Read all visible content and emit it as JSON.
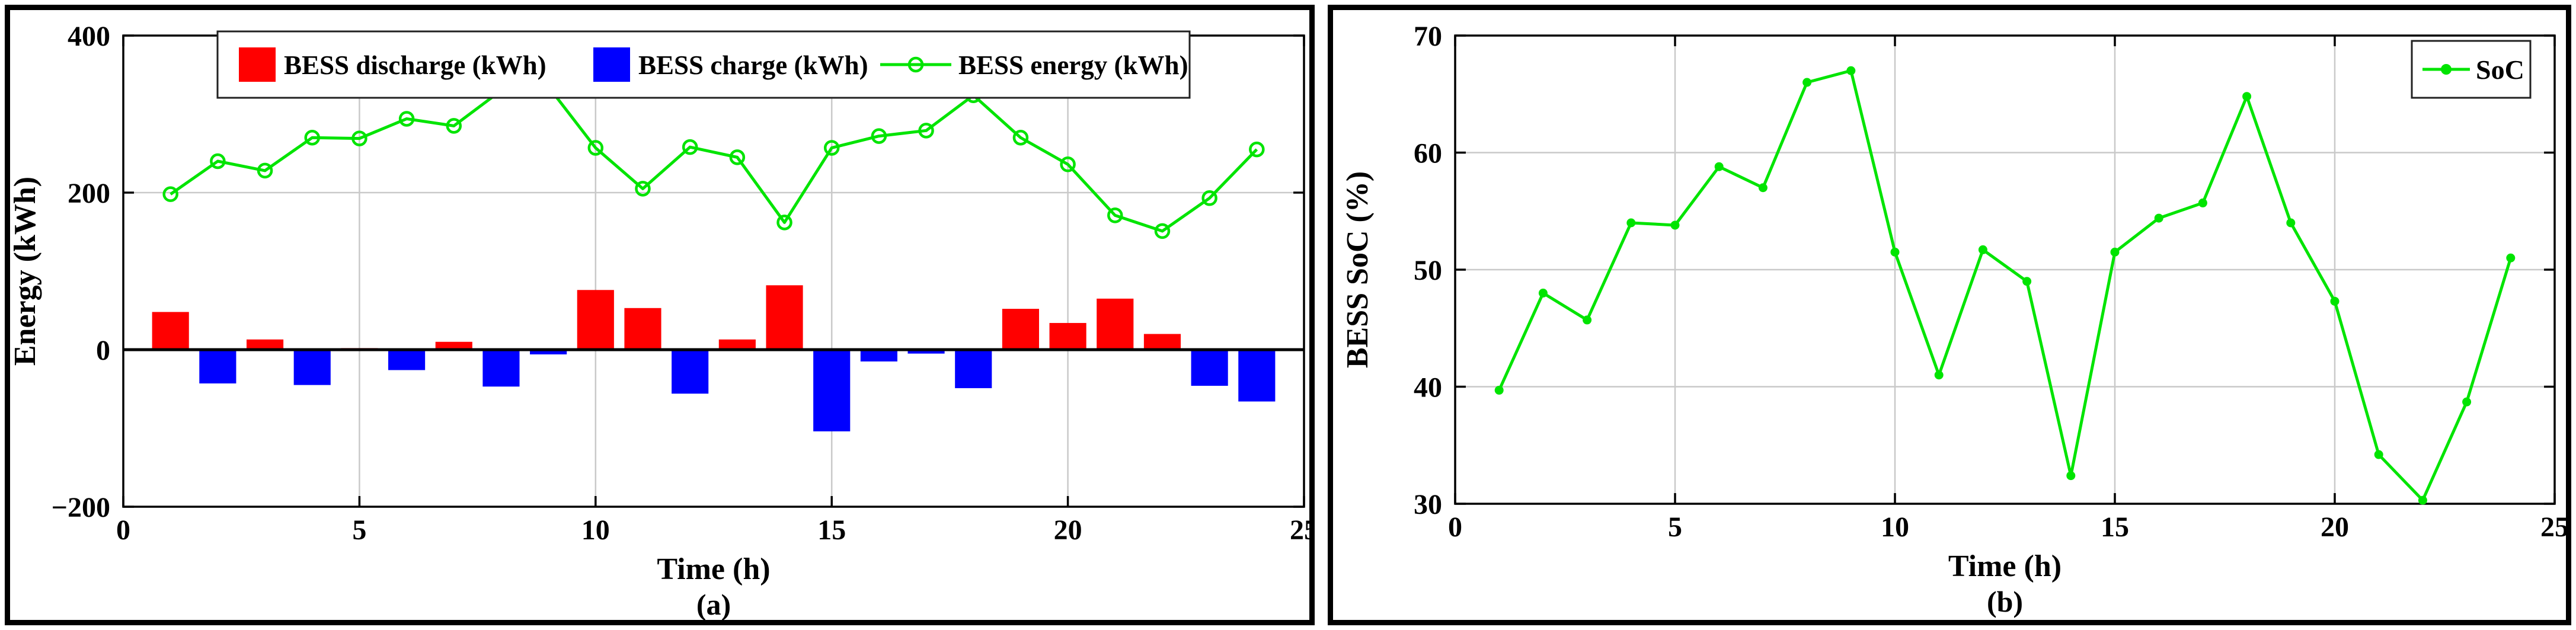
{
  "figure": {
    "background": "#ffffff",
    "panel_border_color": "#000000",
    "grid_color": "#c9c9c9",
    "axis_color": "#000000"
  },
  "chart_data": [
    {
      "id": "a",
      "type": "bar+line",
      "caption": "(a)",
      "xlabel": "Time (h)",
      "ylabel": "Energy (kWh)",
      "xlim": [
        0,
        25
      ],
      "ylim": [
        -200,
        400
      ],
      "xticks": [
        0,
        5,
        10,
        15,
        20,
        25
      ],
      "yticks": [
        -200,
        0,
        200,
        400
      ],
      "grid_x": [
        5,
        10,
        15,
        20
      ],
      "grid_y": [
        200
      ],
      "zero_line": true,
      "legend_position": "top-center",
      "categories": [
        1,
        2,
        3,
        4,
        5,
        6,
        7,
        8,
        9,
        10,
        11,
        12,
        13,
        14,
        15,
        16,
        17,
        18,
        19,
        20,
        21,
        22,
        23,
        24
      ],
      "series": [
        {
          "name": "BESS discharge (kWh)",
          "type": "bar",
          "color": "#ff0000",
          "values": [
            48,
            0,
            13,
            0,
            2,
            0,
            10,
            0,
            0,
            76,
            53,
            0,
            13,
            82,
            0,
            0,
            0,
            0,
            52,
            34,
            65,
            20,
            0,
            0
          ]
        },
        {
          "name": "BESS charge (kWh)",
          "type": "bar",
          "color": "#0000ff",
          "values": [
            0,
            -43,
            0,
            -45,
            0,
            -26,
            0,
            -47,
            -6,
            0,
            0,
            -56,
            0,
            0,
            -104,
            -15,
            -5,
            -49,
            0,
            0,
            0,
            0,
            -46,
            -66
          ]
        },
        {
          "name": "BESS energy (kWh)",
          "type": "line",
          "color": "#00e400",
          "marker": "open-circle",
          "values": [
            198,
            240,
            228,
            270,
            269,
            294,
            285,
            330,
            335,
            257,
            205,
            258,
            245,
            162,
            257,
            272,
            279,
            324,
            270,
            236,
            171,
            151,
            193,
            255
          ]
        }
      ]
    },
    {
      "id": "b",
      "type": "line",
      "caption": "(b)",
      "xlabel": "Time (h)",
      "ylabel": "BESS SoC (%)",
      "xlim": [
        0,
        25
      ],
      "ylim": [
        30,
        70
      ],
      "xticks": [
        0,
        5,
        10,
        15,
        20,
        25
      ],
      "yticks": [
        30,
        40,
        50,
        60,
        70
      ],
      "grid_x": [
        5,
        10,
        15,
        20
      ],
      "grid_y": [
        40,
        50,
        60
      ],
      "zero_line": false,
      "legend_position": "top-right",
      "categories": [
        1,
        2,
        3,
        4,
        5,
        6,
        7,
        8,
        9,
        10,
        11,
        12,
        13,
        14,
        15,
        16,
        17,
        18,
        19,
        20,
        21,
        22,
        23,
        24
      ],
      "series": [
        {
          "name": "SoC",
          "type": "line",
          "color": "#00e400",
          "marker": "dot",
          "values": [
            39.7,
            48,
            45.7,
            54,
            53.8,
            58.8,
            57,
            66,
            67,
            51.5,
            41,
            51.7,
            49,
            32.4,
            51.5,
            54.4,
            55.7,
            64.8,
            54,
            47.3,
            34.2,
            30.3,
            38.7,
            51
          ]
        }
      ]
    }
  ]
}
